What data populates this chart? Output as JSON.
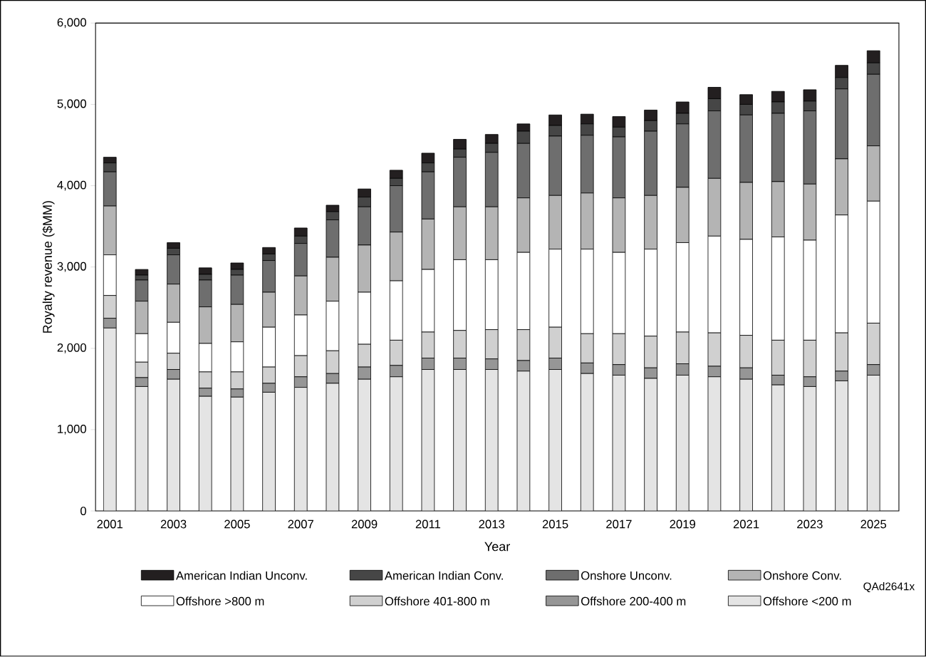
{
  "chart_data": {
    "type": "bar",
    "stacked": true,
    "xlabel": "Year",
    "ylabel": "Royalty revenue ($MM)",
    "categories": [
      "2001",
      null,
      "2003",
      null,
      "2005",
      null,
      "2007",
      null,
      "2009",
      null,
      "2011",
      null,
      "2013",
      null,
      "2015",
      null,
      "2017",
      null,
      "2019",
      null,
      "2021",
      null,
      "2023",
      null,
      "2025"
    ],
    "ylim": [
      0,
      6000
    ],
    "yticks": [
      0,
      {
        "value": 1000,
        "label": "1,000"
      },
      {
        "value": 2000,
        "label": "2,000"
      },
      {
        "value": 3000,
        "label": "3,000"
      },
      {
        "value": 4000,
        "label": "4,000"
      },
      {
        "value": 5000,
        "label": "5,000"
      },
      {
        "value": 6000,
        "label": "6,000"
      }
    ],
    "legend": "bottom",
    "series": [
      {
        "name": "Offshore <200 m",
        "color": "#e4e4e4",
        "values": [
          2250,
          1530,
          1620,
          1410,
          1400,
          1460,
          1520,
          1570,
          1620,
          1650,
          1740,
          1740,
          1740,
          1720,
          1740,
          1690,
          1670,
          1630,
          1670,
          1650,
          1620,
          1550,
          1530,
          1600,
          1670
        ]
      },
      {
        "name": "Offshore 200-400 m",
        "color": "#969696",
        "values": [
          120,
          110,
          120,
          100,
          100,
          110,
          130,
          120,
          150,
          140,
          140,
          140,
          130,
          130,
          140,
          130,
          130,
          130,
          140,
          130,
          140,
          120,
          120,
          120,
          130
        ]
      },
      {
        "name": "Offshore 401-800 m",
        "color": "#d0d0d0",
        "values": [
          280,
          190,
          200,
          200,
          210,
          200,
          260,
          280,
          280,
          310,
          320,
          340,
          360,
          380,
          380,
          360,
          380,
          390,
          390,
          410,
          400,
          430,
          450,
          470,
          510
        ]
      },
      {
        "name": "Offshore >800 m",
        "color": "#ffffff",
        "values": [
          500,
          350,
          380,
          350,
          370,
          490,
          500,
          610,
          640,
          730,
          770,
          870,
          860,
          950,
          960,
          1040,
          1000,
          1070,
          1100,
          1190,
          1180,
          1270,
          1230,
          1450,
          1500
        ]
      },
      {
        "name": "Onshore Conv.",
        "color": "#b4b4b4",
        "values": [
          600,
          400,
          470,
          450,
          460,
          430,
          480,
          540,
          580,
          600,
          620,
          650,
          650,
          670,
          660,
          690,
          670,
          660,
          680,
          710,
          700,
          680,
          690,
          690,
          680
        ]
      },
      {
        "name": "Onshore Unconv.",
        "color": "#6e6e6e",
        "values": [
          420,
          260,
          360,
          330,
          360,
          390,
          400,
          460,
          470,
          570,
          580,
          610,
          670,
          670,
          730,
          710,
          750,
          790,
          780,
          830,
          830,
          840,
          900,
          860,
          880
        ]
      },
      {
        "name": "American Indian Conv.",
        "color": "#464646",
        "values": [
          110,
          60,
          80,
          70,
          70,
          80,
          90,
          100,
          120,
          90,
          110,
          100,
          110,
          150,
          130,
          140,
          120,
          130,
          130,
          150,
          130,
          140,
          120,
          140,
          140
        ]
      },
      {
        "name": "American Indian Unconv.",
        "color": "#231f20",
        "values": [
          70,
          70,
          70,
          80,
          80,
          80,
          100,
          80,
          100,
          100,
          120,
          120,
          110,
          90,
          130,
          120,
          130,
          130,
          140,
          140,
          120,
          130,
          140,
          150,
          150
        ]
      }
    ],
    "annotations": [
      "QAd2641x"
    ]
  }
}
